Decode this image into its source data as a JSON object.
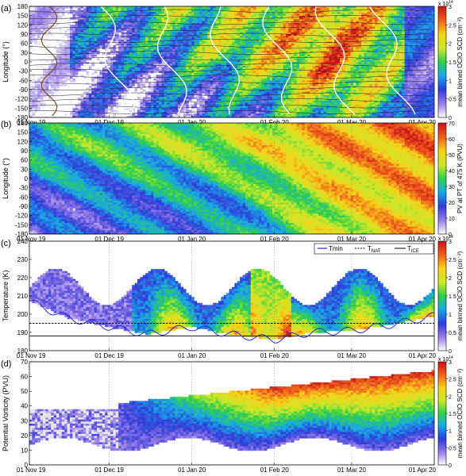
{
  "panels": [
    {
      "label": "(a)",
      "ylabel": "Longitude (°)",
      "yticks": [
        "180",
        "150",
        "120",
        "90",
        "60",
        "30",
        "0",
        "-30",
        "-60",
        "-90",
        "-120",
        "-150",
        "-180"
      ],
      "colorbar_label": "mean binned OClO SCD (cm⁻²)",
      "colorbar_ticks": [
        "0",
        "0.5",
        "1",
        "1.5",
        "2",
        "2.5",
        "3"
      ],
      "colorbar_exponent": "x 10",
      "colorbar_exponent_power": "14"
    },
    {
      "label": "(b)",
      "ylabel": "Longitude (°)",
      "yticks": [
        "180",
        "150",
        "120",
        "90",
        "60",
        "30",
        "0",
        "-30",
        "-60",
        "-90",
        "-120",
        "-150",
        "-180"
      ],
      "colorbar_label": "PV at PT of 475 K (PVU)",
      "colorbar_ticks": [
        "0",
        "10",
        "20",
        "30",
        "40",
        "50",
        "60",
        "70"
      ]
    },
    {
      "label": "(c)",
      "ylabel": "Temperature (K)",
      "yticks": [
        "240",
        "230",
        "220",
        "210",
        "200",
        "190",
        "180"
      ],
      "colorbar_label": "mean binned OClO SCD (cm⁻²)",
      "colorbar_ticks": [
        "0",
        "0.5",
        "1",
        "1.5",
        "2",
        "2.5",
        "3"
      ],
      "colorbar_exponent": "x 10",
      "colorbar_exponent_power": "14",
      "legend": [
        {
          "name": "Tmin",
          "style": "solid",
          "color": "#2a2ad0"
        },
        {
          "name": "T",
          "sub": "NAT",
          "style": "dashed",
          "color": "#000000"
        },
        {
          "name": "T",
          "sub": "ICE",
          "style": "solid",
          "color": "#000000"
        }
      ]
    },
    {
      "label": "(d)",
      "ylabel": "Potential Vorticity (PVU)",
      "yticks": [
        "70",
        "60",
        "50",
        "40",
        "30",
        "20",
        "10",
        "0"
      ],
      "colorbar_label": "mean binned OClO SCD (cm⁻²)",
      "colorbar_ticks": [
        "0",
        "0.5",
        "1",
        "1.5",
        "2",
        "2.5",
        "3"
      ],
      "colorbar_exponent": "x 10",
      "colorbar_exponent_power": "14"
    }
  ],
  "xticks": [
    "01 Nov 19",
    "01 Dec 19",
    "01 Jan 20",
    "01 Feb 20",
    "01 Mar 20",
    "01 Apr 20"
  ],
  "chart_data": [
    {
      "type": "heatmap",
      "panel": "(a)",
      "x_range": [
        "2019-11-01",
        "2020-04-01"
      ],
      "ylim": [
        -180,
        180
      ],
      "clim": [
        0,
        300000000000000.0
      ],
      "description_values": {
        "x": [
          "2019-11-15",
          "2019-12-15",
          "2020-01-15",
          "2020-02-15",
          "2020-03-15"
        ],
        "y": [
          150,
          90,
          30,
          -30,
          -90,
          -150
        ],
        "z": [
          [
            0.3,
            1.4,
            1.8,
            2.2,
            1.6
          ],
          [
            0.4,
            1.0,
            1.6,
            2.6,
            1.4
          ],
          [
            0.2,
            0.8,
            1.8,
            2.4,
            1.2
          ],
          [
            0.2,
            0.6,
            1.4,
            2.4,
            1.0
          ],
          [
            0.1,
            0.4,
            1.0,
            2.0,
            1.2
          ],
          [
            0.1,
            0.4,
            0.8,
            1.6,
            1.0
          ]
        ]
      }
    },
    {
      "type": "heatmap",
      "panel": "(b)",
      "x_range": [
        "2019-11-01",
        "2020-04-01"
      ],
      "ylim": [
        -180,
        180
      ],
      "clim": [
        0,
        70
      ],
      "description_values": {
        "x": [
          "2019-11-15",
          "2019-12-15",
          "2020-01-15",
          "2020-02-15",
          "2020-03-15"
        ],
        "y": [
          150,
          90,
          30,
          -30,
          -90,
          -150
        ],
        "z": [
          [
            25,
            35,
            40,
            55,
            60
          ],
          [
            30,
            35,
            45,
            55,
            58
          ],
          [
            25,
            30,
            35,
            50,
            57
          ],
          [
            20,
            25,
            30,
            50,
            56
          ],
          [
            15,
            20,
            25,
            45,
            55
          ],
          [
            15,
            20,
            25,
            45,
            55
          ]
        ]
      }
    },
    {
      "type": "heatmap",
      "panel": "(c)",
      "x_range": [
        "2019-11-01",
        "2020-04-01"
      ],
      "ylim": [
        180,
        240
      ],
      "clim": [
        0,
        300000000000000.0
      ],
      "lines": {
        "T_NAT": 195,
        "T_ICE": 188,
        "Tmin": {
          "x": [
            "2019-11-01",
            "2019-11-15",
            "2019-12-01",
            "2019-12-15",
            "2020-01-01",
            "2020-01-15",
            "2020-02-01",
            "2020-02-15",
            "2020-03-01",
            "2020-03-15",
            "2020-04-01"
          ],
          "y": [
            207,
            198,
            193,
            189,
            193,
            189,
            186,
            190,
            191,
            194,
            199
          ]
        }
      }
    },
    {
      "type": "heatmap",
      "panel": "(d)",
      "x_range": [
        "2019-11-01",
        "2020-04-01"
      ],
      "ylim": [
        0,
        75
      ],
      "clim": [
        0,
        300000000000000.0
      ]
    }
  ]
}
